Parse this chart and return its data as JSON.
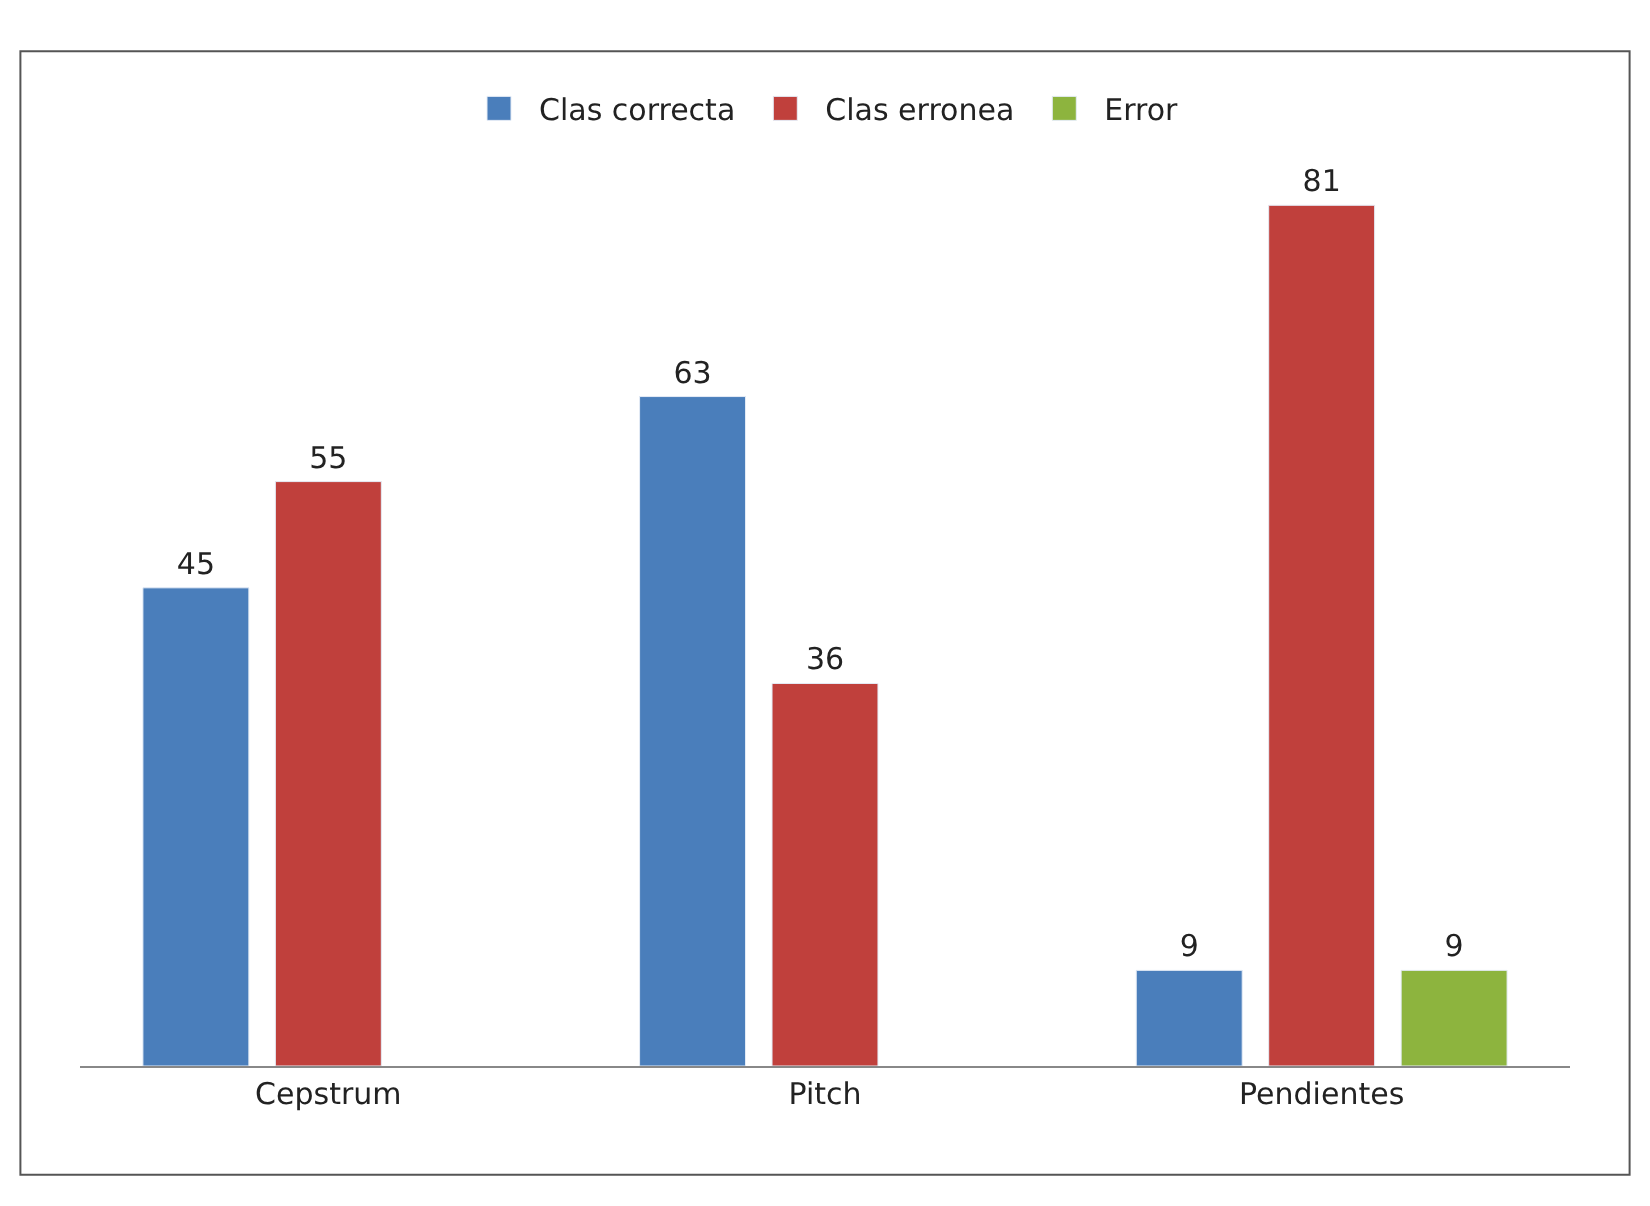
{
  "chart_data": {
    "type": "bar",
    "categories": [
      "Cepstrum",
      "Pitch",
      "Pendientes"
    ],
    "series": [
      {
        "name": "Clas correcta",
        "color": "#4a7ebb",
        "values": [
          45,
          63,
          9
        ]
      },
      {
        "name": "Clas erronea",
        "color": "#c0403c",
        "values": [
          55,
          36,
          81
        ]
      },
      {
        "name": "Error",
        "color": "#8db43e",
        "values": [
          null,
          null,
          9
        ]
      }
    ],
    "data_labels": true,
    "legend": "top",
    "tick_labels": "x"
  }
}
